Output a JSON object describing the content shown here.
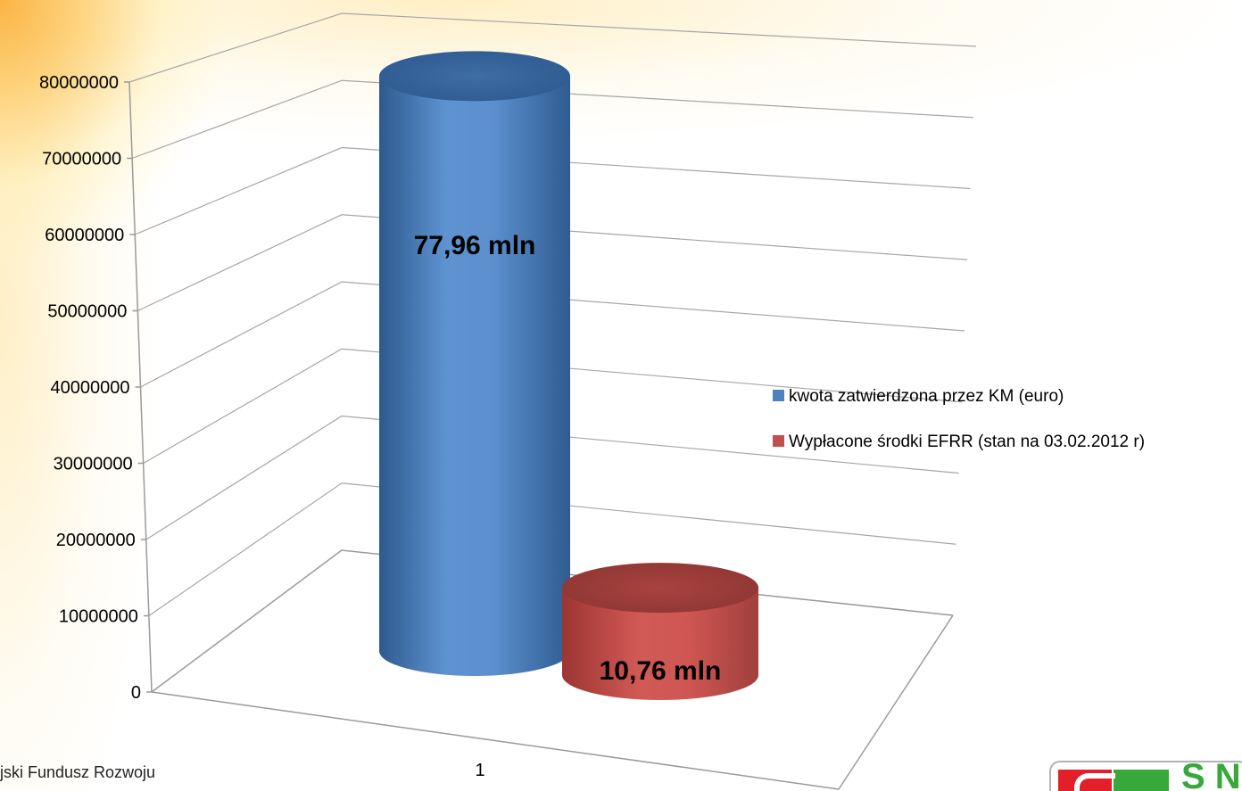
{
  "chart_data": {
    "type": "bar",
    "style": "3d-cylinder",
    "categories": [
      "1"
    ],
    "series": [
      {
        "name": "kwota zatwierdzona przez KM (euro)",
        "values": [
          77960000
        ],
        "data_label": "77,96 mln",
        "color": "#4f81bd"
      },
      {
        "name": "Wypłacone środki EFRR (stan na 03.02.2012 r)",
        "values": [
          10760000
        ],
        "data_label": "10,76 mln",
        "color": "#c0504d"
      }
    ],
    "y_ticks": [
      "0",
      "10000000",
      "20000000",
      "30000000",
      "40000000",
      "50000000",
      "60000000",
      "70000000",
      "80000000"
    ],
    "ylim": [
      0,
      80000000
    ],
    "grid": true,
    "legend_position": "right"
  },
  "footer": {
    "text": "jski Fundusz Rozwoju"
  },
  "logo": {
    "text": "S N"
  }
}
